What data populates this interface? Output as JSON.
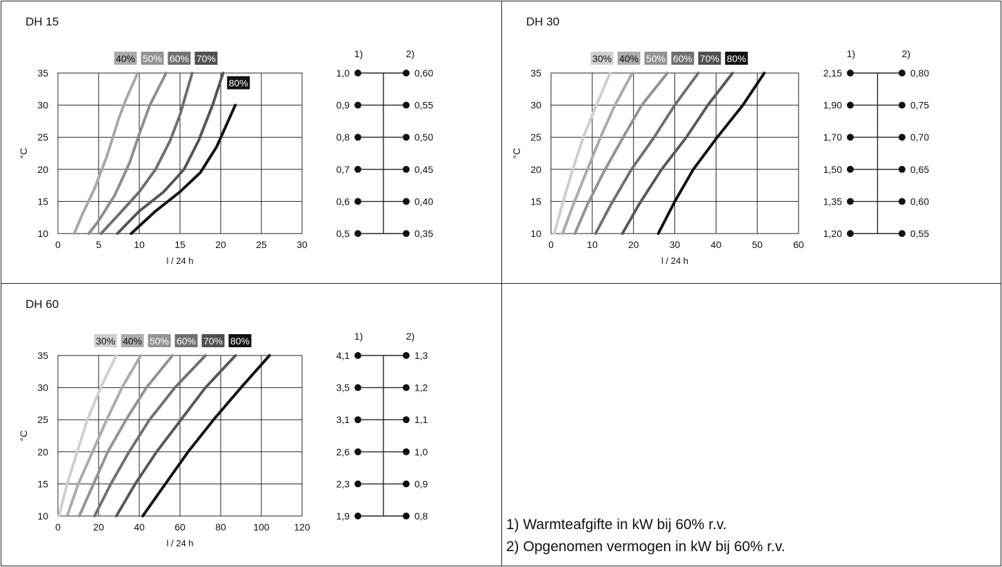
{
  "chart_data": [
    {
      "type": "line",
      "title": "DH 15",
      "xlabel": "l / 24 h",
      "ylabel": "°C",
      "xlim": [
        0,
        30
      ],
      "ylim": [
        10,
        35
      ],
      "x_ticks": [
        "0",
        "5",
        "10",
        "15",
        "20",
        "25",
        "30"
      ],
      "y_ticks": [
        "10",
        "15",
        "20",
        "25",
        "30",
        "35"
      ],
      "grid": true,
      "series": [
        {
          "name": "40%",
          "color": "#a8a8a8",
          "points": [
            [
              2,
              10
            ],
            [
              3,
              13
            ],
            [
              4.5,
              17
            ],
            [
              6,
              22
            ],
            [
              7.5,
              28
            ],
            [
              8.4,
              31
            ],
            [
              9.8,
              35
            ]
          ]
        },
        {
          "name": "50%",
          "color": "#8d8d8d",
          "points": [
            [
              3.8,
              10
            ],
            [
              5,
              12
            ],
            [
              7,
              16
            ],
            [
              8.8,
              21
            ],
            [
              10,
              25.5
            ],
            [
              11.3,
              30
            ],
            [
              13.3,
              35
            ]
          ]
        },
        {
          "name": "60%",
          "color": "#6e6e6e",
          "points": [
            [
              5.3,
              10
            ],
            [
              7.5,
              13
            ],
            [
              10,
              16.5
            ],
            [
              12,
              20
            ],
            [
              13.8,
              24.5
            ],
            [
              15,
              28.5
            ],
            [
              16.5,
              35
            ]
          ]
        },
        {
          "name": "70%",
          "color": "#555555",
          "points": [
            [
              7.3,
              10
            ],
            [
              10,
              13.5
            ],
            [
              13,
              16.5
            ],
            [
              15.5,
              20
            ],
            [
              17.3,
              24.5
            ],
            [
              19,
              30
            ],
            [
              20.3,
              35
            ]
          ]
        },
        {
          "name": "80%",
          "color": "#111111",
          "points": [
            [
              9,
              10
            ],
            [
              12,
              13.5
            ],
            [
              15,
              16.5
            ],
            [
              17.5,
              19.5
            ],
            [
              19.5,
              23.5
            ],
            [
              21.8,
              30
            ]
          ]
        }
      ],
      "legend_top": [
        "40%",
        "50%",
        "60%",
        "70%"
      ],
      "legend_inline": "80%",
      "scale": {
        "header1": "1)",
        "header2": "2)",
        "left": [
          "1,0",
          "0,9",
          "0,8",
          "0,7",
          "0,6",
          "0,5"
        ],
        "right": [
          "0,60",
          "0,55",
          "0,50",
          "0,45",
          "0,40",
          "0,35"
        ]
      }
    },
    {
      "type": "line",
      "title": "DH 30",
      "xlabel": "l / 24 h",
      "ylabel": "°C",
      "xlim": [
        0,
        60
      ],
      "ylim": [
        10,
        35
      ],
      "x_ticks": [
        "0",
        "10",
        "20",
        "30",
        "40",
        "50",
        "60"
      ],
      "y_ticks": [
        "10",
        "15",
        "20",
        "25",
        "30",
        "35"
      ],
      "grid": true,
      "series": [
        {
          "name": "30%",
          "color": "#cfcfcf",
          "points": [
            [
              0.8,
              10
            ],
            [
              2.5,
              14
            ],
            [
              4.8,
              19
            ],
            [
              7.8,
              25
            ],
            [
              11,
              30
            ],
            [
              14.3,
              35
            ]
          ]
        },
        {
          "name": "40%",
          "color": "#ababab",
          "points": [
            [
              2.8,
              10
            ],
            [
              5.4,
              14.5
            ],
            [
              8.5,
              19.5
            ],
            [
              12,
              25
            ],
            [
              15.5,
              30
            ],
            [
              19.7,
              35
            ]
          ]
        },
        {
          "name": "50%",
          "color": "#939393",
          "points": [
            [
              5.8,
              10
            ],
            [
              8.8,
              14.5
            ],
            [
              12.7,
              19.5
            ],
            [
              17.5,
              25
            ],
            [
              22,
              30
            ],
            [
              28.2,
              35
            ]
          ]
        },
        {
          "name": "60%",
          "color": "#707070",
          "points": [
            [
              10.8,
              10
            ],
            [
              14.5,
              14.5
            ],
            [
              19.5,
              20
            ],
            [
              25,
              25
            ],
            [
              30,
              30
            ],
            [
              35.7,
              35
            ]
          ]
        },
        {
          "name": "70%",
          "color": "#585858",
          "points": [
            [
              17.3,
              10
            ],
            [
              21.3,
              14.5
            ],
            [
              26.8,
              20
            ],
            [
              32.8,
              25
            ],
            [
              38,
              30
            ],
            [
              44,
              35
            ]
          ]
        },
        {
          "name": "80%",
          "color": "#111111",
          "points": [
            [
              26,
              10
            ],
            [
              30,
              15
            ],
            [
              34.5,
              20
            ],
            [
              40.3,
              25
            ],
            [
              46.5,
              30
            ],
            [
              51.7,
              35
            ]
          ]
        }
      ],
      "legend_top": [
        "30%",
        "40%",
        "50%",
        "60%",
        "70%",
        "80%"
      ],
      "scale": {
        "header1": "1)",
        "header2": "2)",
        "left": [
          "2,15",
          "1,90",
          "1,70",
          "1,50",
          "1,35",
          "1,20"
        ],
        "right": [
          "0,80",
          "0,75",
          "0,70",
          "0,65",
          "0,60",
          "0,55"
        ]
      }
    },
    {
      "type": "line",
      "title": "DH 60",
      "xlabel": "l / 24 h",
      "ylabel": "°C",
      "xlim": [
        0,
        120
      ],
      "ylim": [
        10,
        35
      ],
      "x_ticks": [
        "0",
        "20",
        "40",
        "60",
        "80",
        "100",
        "120"
      ],
      "y_ticks": [
        "10",
        "15",
        "20",
        "25",
        "30",
        "35"
      ],
      "grid": true,
      "series": [
        {
          "name": "30%",
          "color": "#cfcfcf",
          "points": [
            [
              0.5,
              10
            ],
            [
              4.5,
              15
            ],
            [
              9.5,
              20
            ],
            [
              14.5,
              25
            ],
            [
              21,
              30
            ],
            [
              28.7,
              35
            ]
          ]
        },
        {
          "name": "40%",
          "color": "#ababab",
          "points": [
            [
              4.5,
              10
            ],
            [
              10,
              15
            ],
            [
              17,
              20
            ],
            [
              24,
              25
            ],
            [
              31.5,
              30
            ],
            [
              40.7,
              35
            ]
          ]
        },
        {
          "name": "50%",
          "color": "#939393",
          "points": [
            [
              10.5,
              10
            ],
            [
              17.5,
              15
            ],
            [
              24.5,
              20
            ],
            [
              33.5,
              25
            ],
            [
              43.5,
              30
            ],
            [
              56.3,
              35
            ]
          ]
        },
        {
          "name": "60%",
          "color": "#707070",
          "points": [
            [
              18,
              10
            ],
            [
              26,
              15
            ],
            [
              35,
              20
            ],
            [
              45,
              25
            ],
            [
              57.5,
              30
            ],
            [
              72.5,
              35
            ]
          ]
        },
        {
          "name": "70%",
          "color": "#585858",
          "points": [
            [
              28.7,
              10
            ],
            [
              38,
              15
            ],
            [
              48.5,
              20
            ],
            [
              60.5,
              25
            ],
            [
              72.5,
              30
            ],
            [
              87.3,
              35
            ]
          ]
        },
        {
          "name": "80%",
          "color": "#111111",
          "points": [
            [
              41.7,
              10
            ],
            [
              52.8,
              15
            ],
            [
              64,
              20
            ],
            [
              76.5,
              25
            ],
            [
              90,
              30
            ],
            [
              104,
              35
            ]
          ]
        }
      ],
      "legend_top": [
        "30%",
        "40%",
        "50%",
        "60%",
        "70%",
        "80%"
      ],
      "scale": {
        "header1": "1)",
        "header2": "2)",
        "left": [
          "4,1",
          "3,5",
          "3,1",
          "2,6",
          "2,3",
          "1,9"
        ],
        "right": [
          "1,3",
          "1,2",
          "1,1",
          "1,0",
          "0,9",
          "0,8"
        ]
      }
    }
  ],
  "footnotes": [
    "1) Warmteafgifte in kW bij 60% r.v.",
    "2) Opgenomen vermogen in kW bij 60% r.v."
  ],
  "colors": {
    "legend_bg": [
      "#cfcfcf",
      "#ababab",
      "#939393",
      "#707070",
      "#4f4f4f",
      "#111111"
    ]
  }
}
